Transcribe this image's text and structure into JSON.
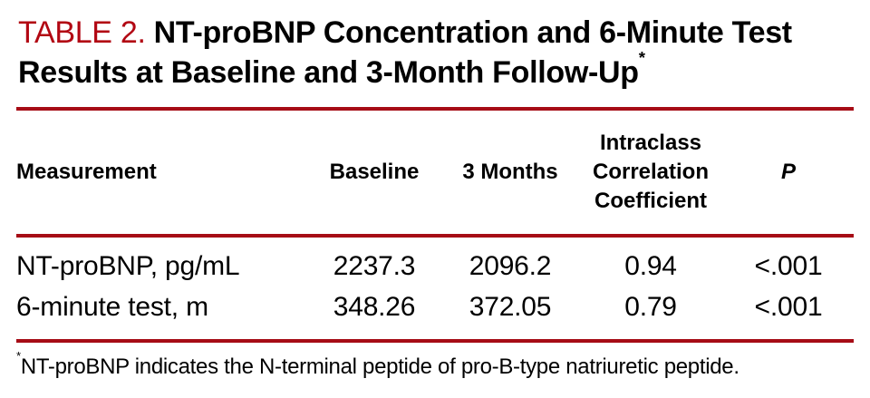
{
  "table": {
    "label": "TABLE 2.",
    "title": "NT-proBNP Concentration and 6-Minute Test Results at Baseline and 3-Month Follow-Up",
    "title_superscript": "*",
    "columns": {
      "measurement": "Measurement",
      "baseline": "Baseline",
      "three_months": "3 Months",
      "icc": "Intraclass Correlation Coefficient",
      "p": "P"
    },
    "rows": [
      {
        "measurement": "NT-proBNP, pg/mL",
        "baseline": "2237.3",
        "three_months": "2096.2",
        "icc": "0.94",
        "p": "<.001"
      },
      {
        "measurement": "6-minute test, m",
        "baseline": "348.26",
        "three_months": "372.05",
        "icc": "0.79",
        "p": "<.001"
      }
    ],
    "footnote_marker": "*",
    "footnote": "NT-proBNP indicates the N-terminal peptide of pro-B-type natriuretic peptide."
  },
  "colors": {
    "accent_red_label": "#b20713",
    "rule_red": "#a60c16",
    "text_black": "#000000",
    "background": "#ffffff"
  }
}
